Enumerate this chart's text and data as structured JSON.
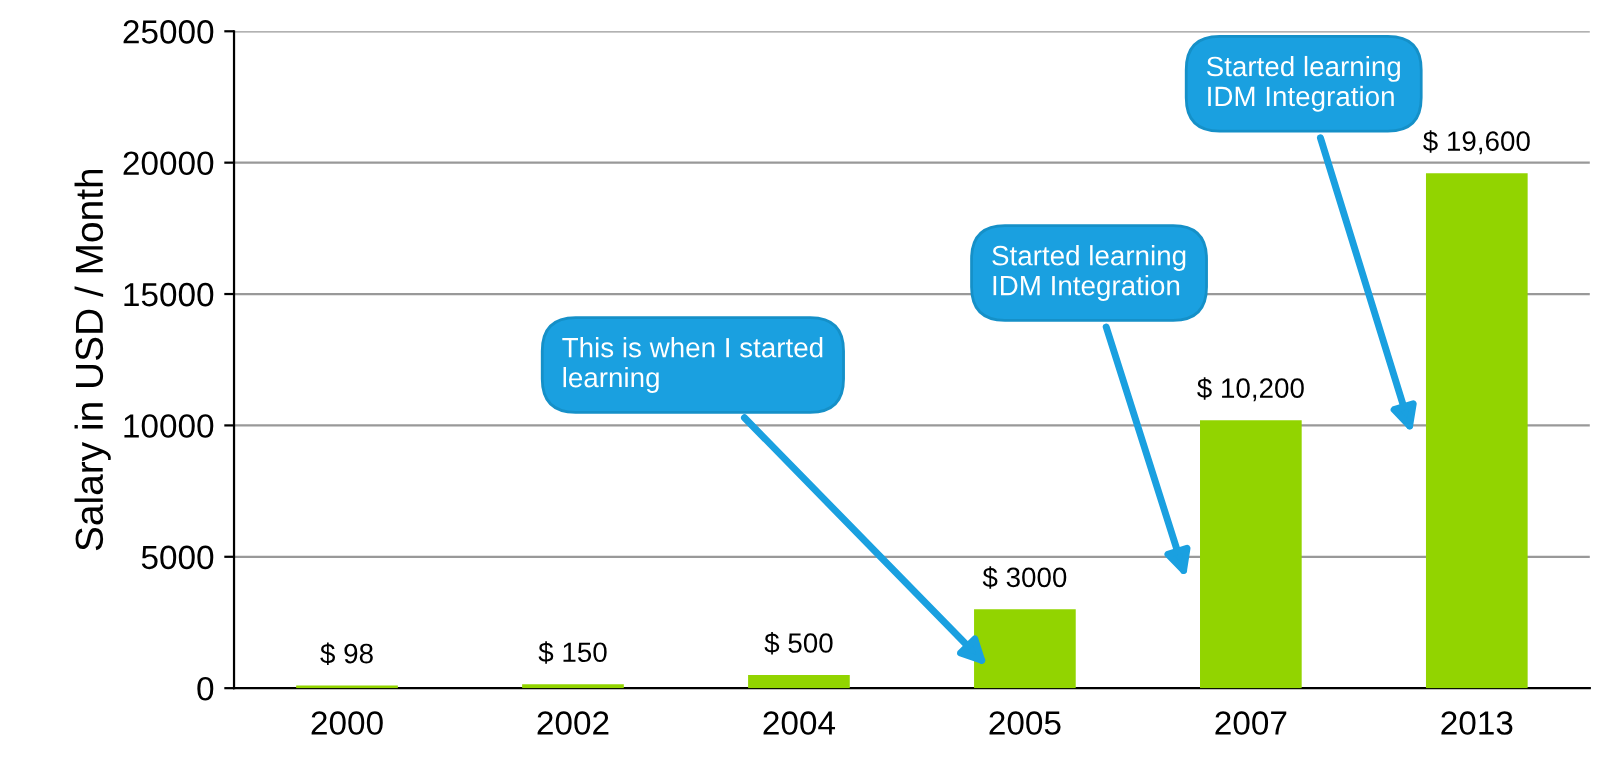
{
  "chart_data": {
    "type": "bar",
    "ylabel": "Salary in USD / Month",
    "categories": [
      "2000",
      "2002",
      "2004",
      "2005",
      "2007",
      "2013"
    ],
    "values": [
      98,
      150,
      500,
      3000,
      10200,
      19600
    ],
    "value_labels": [
      "$ 98",
      "$ 150",
      "$ 500",
      "$ 3000",
      "$ 10,200",
      "$ 19,600"
    ],
    "color": "#92d400",
    "ylim": [
      0,
      25000
    ],
    "yticks": [
      0,
      5000,
      10000,
      15000,
      20000,
      25000
    ],
    "grid": "y",
    "annotations": [
      "This is when I started\nlearning",
      "Started learning\nIDM Integration",
      "Started learning\nIDM Integration"
    ]
  }
}
